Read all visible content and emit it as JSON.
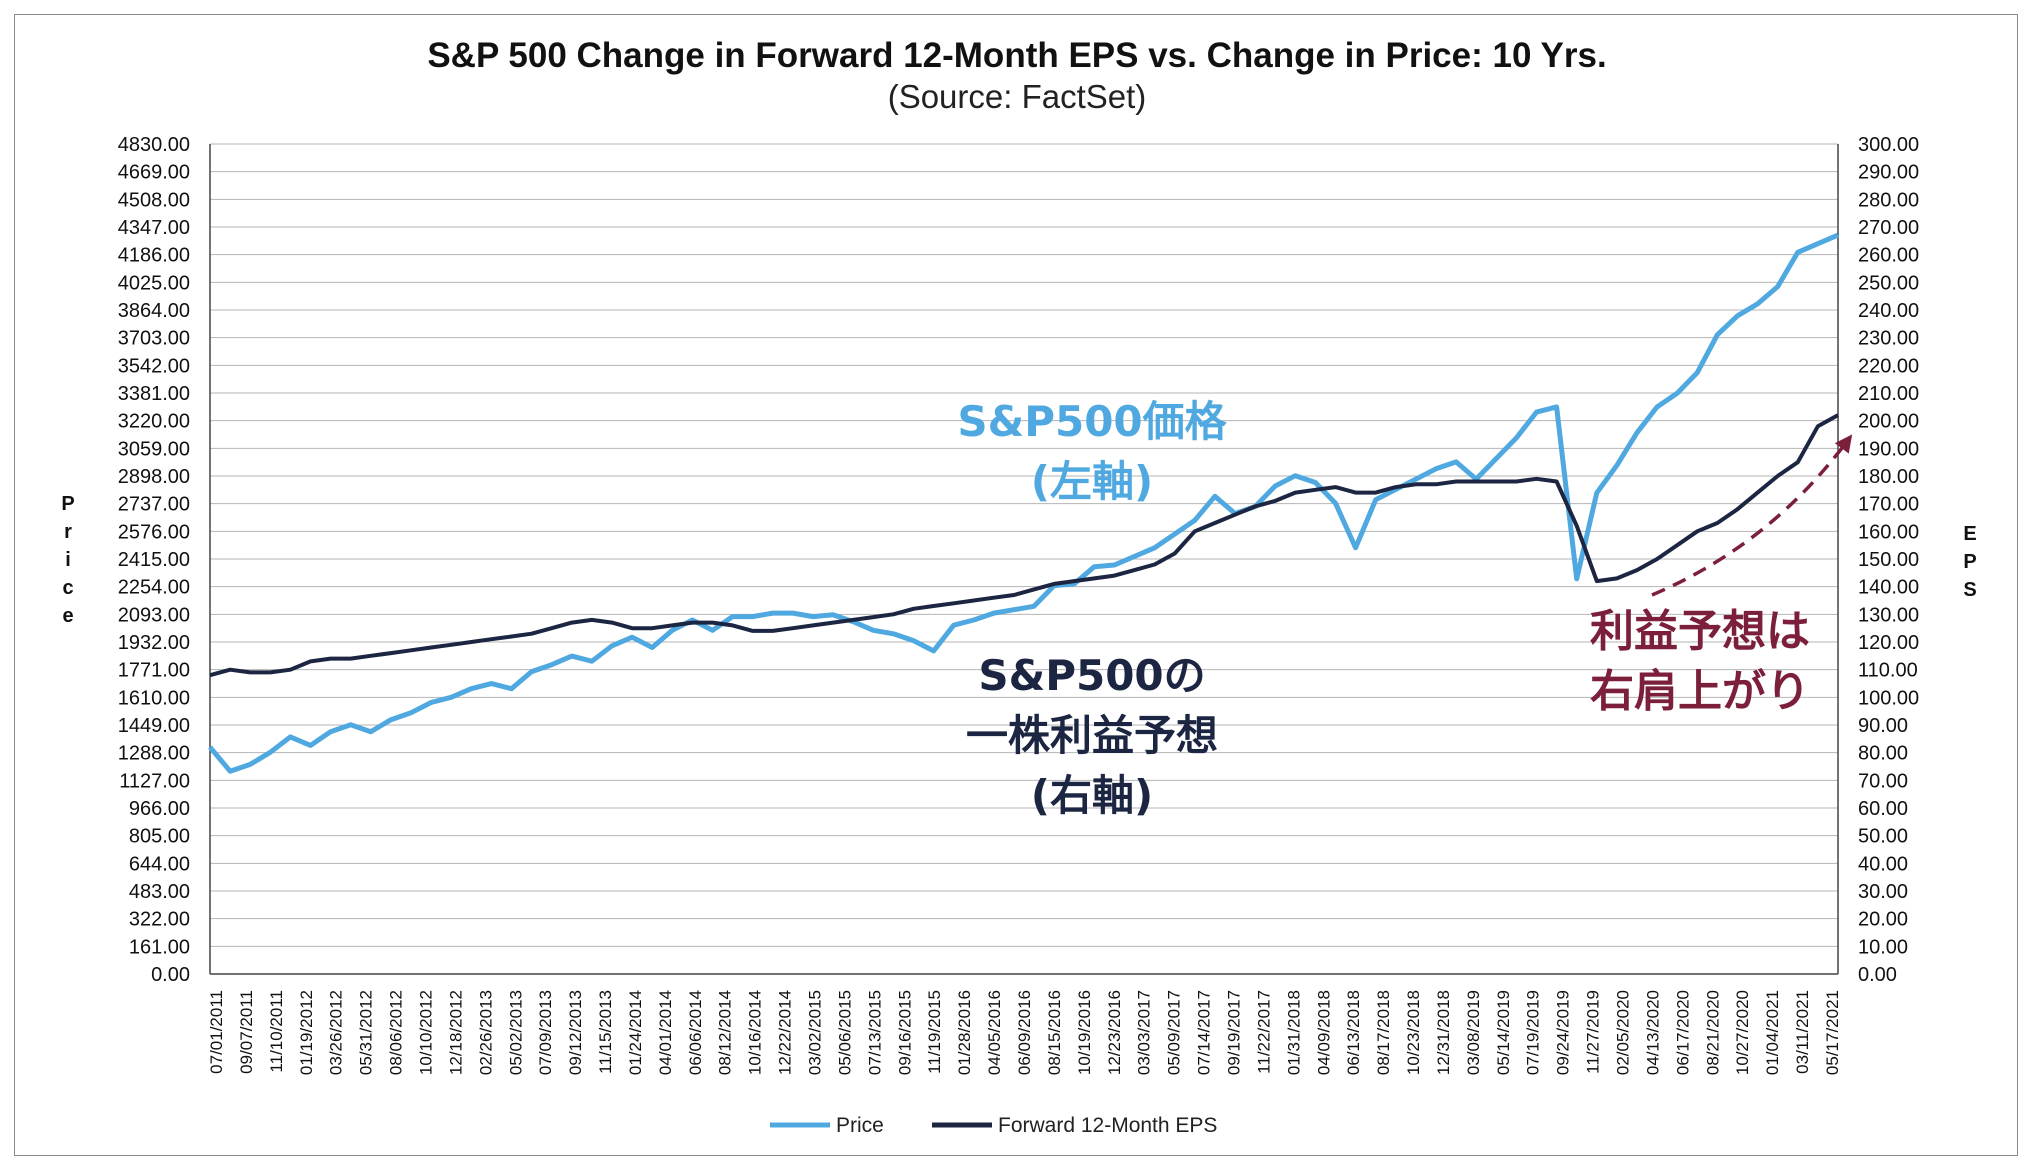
{
  "chart_data": {
    "type": "line",
    "title": "S&P 500 Change in Forward 12-Month EPS vs. Change in Price: 10 Yrs.",
    "subtitle": "(Source: FactSet)",
    "ylabel": "Price",
    "ylabel_right": "EPS",
    "ylim": [
      0,
      4830
    ],
    "ylim_right": [
      0,
      300
    ],
    "y_ticks": [
      "0.00",
      "161.00",
      "322.00",
      "483.00",
      "644.00",
      "805.00",
      "966.00",
      "1127.00",
      "1288.00",
      "1449.00",
      "1610.00",
      "1771.00",
      "1932.00",
      "2093.00",
      "2254.00",
      "2415.00",
      "2576.00",
      "2737.00",
      "2898.00",
      "3059.00",
      "3220.00",
      "3381.00",
      "3542.00",
      "3703.00",
      "3864.00",
      "4025.00",
      "4186.00",
      "4347.00",
      "4508.00",
      "4669.00",
      "4830.00"
    ],
    "y_ticks_right": [
      "0.00",
      "10.00",
      "20.00",
      "30.00",
      "40.00",
      "50.00",
      "60.00",
      "70.00",
      "80.00",
      "90.00",
      "100.00",
      "110.00",
      "120.00",
      "130.00",
      "140.00",
      "150.00",
      "160.00",
      "170.00",
      "180.00",
      "190.00",
      "200.00",
      "210.00",
      "220.00",
      "230.00",
      "240.00",
      "250.00",
      "260.00",
      "270.00",
      "280.00",
      "290.00",
      "300.00"
    ],
    "x_ticks": [
      "07/01/2011",
      "09/07/2011",
      "11/10/2011",
      "01/19/2012",
      "03/26/2012",
      "05/31/2012",
      "08/06/2012",
      "10/10/2012",
      "12/18/2012",
      "02/26/2013",
      "05/02/2013",
      "07/09/2013",
      "09/12/2013",
      "11/15/2013",
      "01/24/2014",
      "04/01/2014",
      "06/06/2014",
      "08/12/2014",
      "10/16/2014",
      "12/22/2014",
      "03/02/2015",
      "05/06/2015",
      "07/13/2015",
      "09/16/2015",
      "11/19/2015",
      "01/28/2016",
      "04/05/2016",
      "06/09/2016",
      "08/15/2016",
      "10/19/2016",
      "12/23/2016",
      "03/03/2017",
      "05/09/2017",
      "07/14/2017",
      "09/19/2017",
      "11/22/2017",
      "01/31/2018",
      "04/09/2018",
      "06/13/2018",
      "08/17/2018",
      "10/23/2018",
      "12/31/2018",
      "03/08/2019",
      "05/14/2019",
      "07/19/2019",
      "09/24/2019",
      "11/27/2019",
      "02/05/2020",
      "04/13/2020",
      "06/17/2020",
      "08/21/2020",
      "10/27/2020",
      "01/04/2021",
      "03/11/2021",
      "05/17/2021"
    ],
    "grid": true,
    "legend_position": "bottom",
    "series": [
      {
        "name": "Price",
        "axis": "left",
        "color": "#4fa9e0",
        "values": [
          1320,
          1180,
          1220,
          1290,
          1380,
          1330,
          1410,
          1450,
          1410,
          1480,
          1520,
          1580,
          1610,
          1660,
          1690,
          1660,
          1760,
          1800,
          1850,
          1820,
          1910,
          1960,
          1900,
          2000,
          2060,
          2000,
          2080,
          2080,
          2100,
          2100,
          2080,
          2090,
          2050,
          2000,
          1980,
          1940,
          1880,
          2030,
          2060,
          2100,
          2120,
          2140,
          2260,
          2270,
          2370,
          2380,
          2430,
          2480,
          2560,
          2640,
          2780,
          2680,
          2720,
          2840,
          2900,
          2860,
          2740,
          2480,
          2760,
          2820,
          2880,
          2940,
          2980,
          2880,
          3000,
          3120,
          3270,
          3300,
          2300,
          2800,
          2960,
          3150,
          3300,
          3380,
          3500,
          3720,
          3830,
          3900,
          4000,
          4200,
          4250,
          4300
        ]
      },
      {
        "name": "Forward 12-Month EPS",
        "axis": "right",
        "color": "#1c2541",
        "values": [
          108,
          110,
          109,
          109,
          110,
          113,
          114,
          114,
          115,
          116,
          117,
          118,
          119,
          120,
          121,
          122,
          123,
          125,
          127,
          128,
          127,
          125,
          125,
          126,
          127,
          127,
          126,
          124,
          124,
          125,
          126,
          127,
          128,
          129,
          130,
          132,
          133,
          134,
          135,
          136,
          137,
          139,
          141,
          142,
          143,
          144,
          146,
          148,
          152,
          160,
          163,
          166,
          169,
          171,
          174,
          175,
          176,
          174,
          174,
          176,
          177,
          177,
          178,
          178,
          178,
          178,
          179,
          178,
          162,
          142,
          143,
          146,
          150,
          155,
          160,
          163,
          168,
          174,
          180,
          185,
          198,
          202
        ]
      }
    ]
  },
  "annotations": {
    "price_label_line1": "S&P500価格",
    "price_label_line2": "(左軸)",
    "eps_label_line1": "S&P500の",
    "eps_label_line2": "一株利益予想",
    "eps_label_line3": "(右軸)",
    "trend_label_line1": "利益予想は",
    "trend_label_line2": "右肩上がり",
    "price_color": "#4fa9e0",
    "eps_color": "#1c2541",
    "trend_color": "#7b1f3a"
  }
}
